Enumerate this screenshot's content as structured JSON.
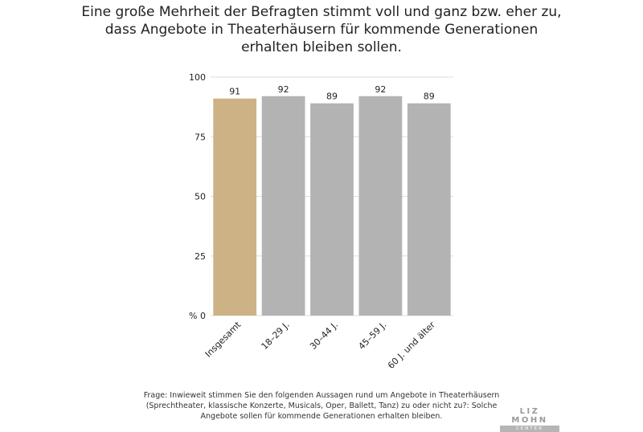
{
  "title_lines": [
    "Eine große Mehrheit der Befragten stimmt voll und ganz bzw. eher zu,",
    "dass Angebote in Theaterhäusern für kommende Generationen",
    "erhalten bleiben sollen."
  ],
  "footnote_lines": [
    "Frage: Inwieweit stimmen Sie den folgenden Aussagen rund um Angebote in Theaterhäusern",
    "(Sprechtheater, klassische Konzerte, Musicals, Oper, Ballett, Tanz) zu oder nicht zu?: Solche",
    "Angebote sollen für kommende Generationen erhalten bleiben."
  ],
  "logo": {
    "main": "LIZ MOHN",
    "sub": "CENTER"
  },
  "colors": {
    "highlight": "#CDB285",
    "bar": "#B3B3B3",
    "grid": "#DDDDDD",
    "text": "#222222"
  },
  "chart_data": {
    "type": "bar",
    "categories": [
      "Insgesamt",
      "18–29 J.",
      "30–44 J.",
      "45–59 J.",
      "60 J. und älter"
    ],
    "values": [
      91,
      92,
      89,
      92,
      89
    ],
    "highlight_index": 0,
    "ylim": [
      0,
      100
    ],
    "yticks": [
      0,
      25,
      50,
      75,
      100
    ],
    "ytick_labels": [
      "% 0",
      "25",
      "50",
      "75",
      "100"
    ],
    "grid": true,
    "xlabel": "",
    "ylabel": ""
  }
}
